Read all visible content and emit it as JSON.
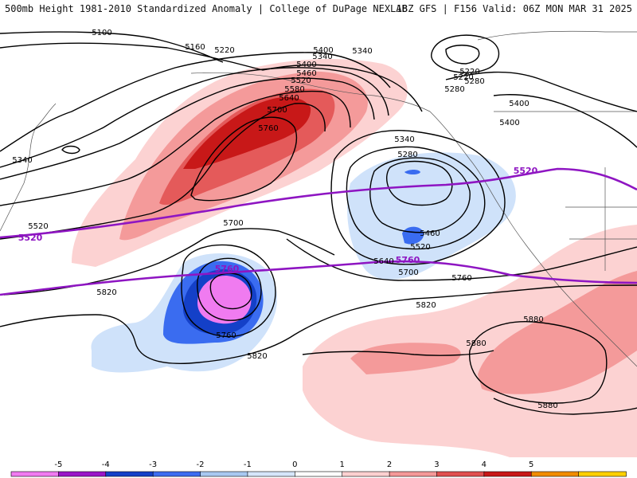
{
  "header": {
    "title_left": "500mb Height 1981-2010 Standardized Anomaly | College of DuPage NEXLAB",
    "title_right": "18Z GFS | F156 Valid: 06Z MON MAR 31 2025"
  },
  "contour_labels": [
    {
      "text": "5100"
    },
    {
      "text": "5160"
    },
    {
      "text": "5220"
    },
    {
      "text": "5340"
    },
    {
      "text": "5400"
    },
    {
      "text": "5460"
    },
    {
      "text": "5520"
    },
    {
      "text": "5580"
    },
    {
      "text": "5640"
    },
    {
      "text": "5700"
    },
    {
      "text": "5760"
    },
    {
      "text": "5220"
    },
    {
      "text": "5280"
    },
    {
      "text": "5340"
    },
    {
      "text": "5520"
    },
    {
      "text": "5280"
    },
    {
      "text": "5340"
    },
    {
      "text": "5400"
    },
    {
      "text": "5460"
    },
    {
      "text": "5520"
    },
    {
      "text": "5640"
    },
    {
      "text": "5700"
    },
    {
      "text": "5700"
    },
    {
      "text": "5760"
    },
    {
      "text": "5820"
    },
    {
      "text": "5820"
    },
    {
      "text": "5760"
    },
    {
      "text": "5820"
    },
    {
      "text": "5880"
    },
    {
      "text": "5880"
    },
    {
      "text": "5880"
    },
    {
      "text": "5400"
    },
    {
      "text": "5340"
    },
    {
      "text": "5280"
    },
    {
      "text": "5220"
    },
    {
      "text": "5400"
    }
  ],
  "purple_labels": [
    "5520",
    "5760",
    "5520",
    "5760"
  ],
  "colorbar": {
    "ticks": [
      "-5",
      "-4",
      "-3",
      "-2",
      "-1",
      "0",
      "1",
      "2",
      "3",
      "4",
      "5"
    ],
    "colors": [
      "#f07bf0",
      "#9a16c8",
      "#1440c8",
      "#3c6cf0",
      "#a8c8f0",
      "#d6e6fa",
      "#ffffff",
      "#fcd0d0",
      "#f49898",
      "#e05050",
      "#c81818",
      "#f08c00",
      "#ffd000"
    ]
  },
  "anomaly_colors": {
    "pos_light": "#fcd2d2",
    "pos_med": "#f49a9a",
    "pos_strong": "#e45a5a",
    "pos_max": "#c81818",
    "neg_light": "#cfe2fa",
    "neg_med": "#3a6cf0",
    "neg_strong": "#1440c8",
    "neg_max": "#f07bf0"
  }
}
